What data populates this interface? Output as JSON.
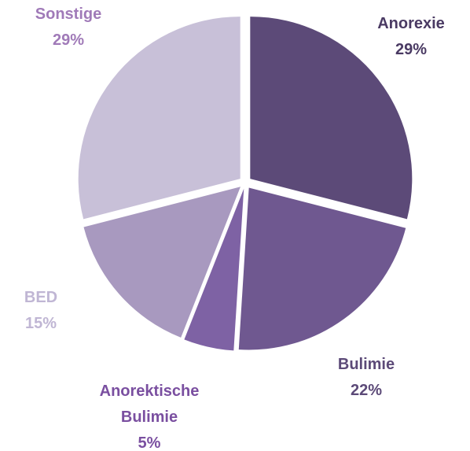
{
  "chart_data": {
    "type": "pie",
    "categories": [
      "Anorexie",
      "Bulimie",
      "Anorektische Bulimie",
      "BED",
      "Sonstige"
    ],
    "values": [
      29,
      22,
      5,
      15,
      29
    ],
    "value_labels": [
      "29%",
      "22%",
      "5%",
      "15%",
      "29%"
    ],
    "colors": [
      "#5c4a78",
      "#6f5890",
      "#7e62a4",
      "#a899bf",
      "#c8c0d8"
    ],
    "label_colors": [
      "#4a3a63",
      "#5c4a78",
      "#7a4fa0",
      "#c0b6d4",
      "#a07ab8"
    ]
  }
}
